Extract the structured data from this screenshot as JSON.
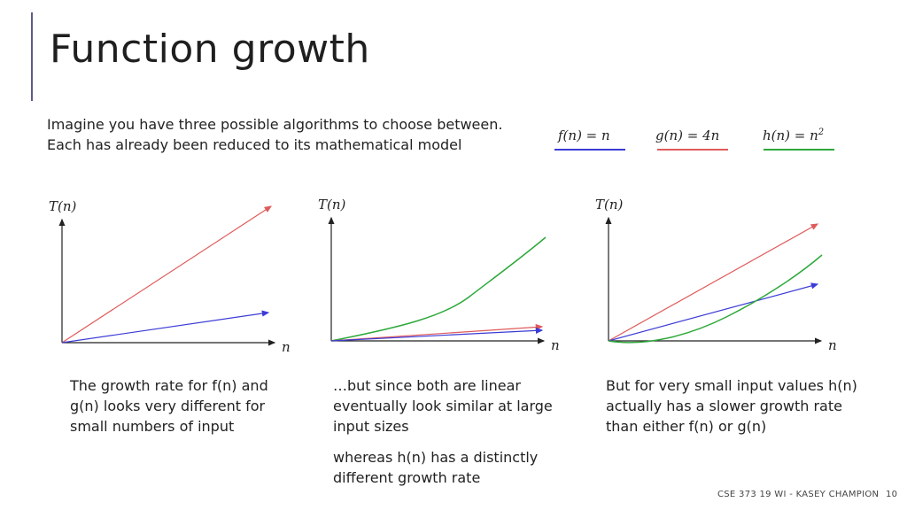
{
  "slide": {
    "title": "Function growth",
    "intro_line1": "Imagine you have three possible algorithms to choose between.",
    "intro_line2": "Each has already been reduced to its mathematical model",
    "equations": {
      "f": {
        "text": "f(n) = n",
        "color": "#3b3bd6"
      },
      "g": {
        "text": "g(n) = 4n",
        "color": "#e05a5a"
      },
      "h": {
        "text": "h(n) = n",
        "sup": "2",
        "color": "#2ea83a"
      }
    },
    "axis_y_label": "T(n)",
    "axis_x_label": "n",
    "panel1_caption": "The growth rate for f(n) and g(n) looks very different for small numbers of input",
    "panel2_caption1": "…but since both are linear eventually look similar at large input sizes",
    "panel2_caption2": "whereas h(n) has a distinctly different growth rate",
    "panel3_caption": "But for very small input values h(n) actually has a slower growth rate than either f(n) or g(n)",
    "footer_course": "CSE 373 19 WI - KASEY CHAMPION",
    "footer_page": "10"
  }
}
